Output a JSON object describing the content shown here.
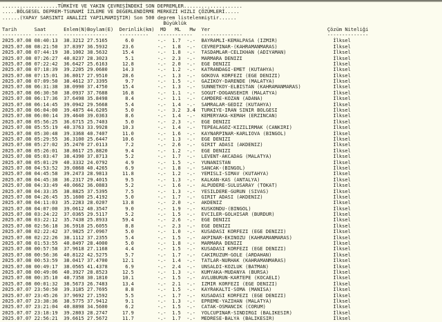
{
  "report": {
    "title_lines": [
      "...................TÜRKİYE VE YAKIN ÇEVRESİNDEKİ SON DEPREMLER....................",
      ".....BÖLGESEL DEPREM-TSUNAMİ İZLEME VE DEĞERLENDİRME MERKEZİ HIZLI ÇÖZÜMLERİ.....",
      "......(YAPAY SARSINTI ANALİZİ YAPILMAMIŞTIR) Son 500 deprem listelenmiştir......"
    ],
    "magnitude_group_label": "Büyüklük",
    "columns": [
      "Tarih",
      "Saat",
      "Enlem(N)",
      "Boylam(E)",
      "Derinlik(km)",
      "MD",
      "ML",
      "Mw",
      "Yer",
      "Çözüm Niteliği"
    ],
    "colors": {
      "background": "#fcfcee",
      "text": "#21211b",
      "topbar": "#8f8f82"
    },
    "earthquakes": [
      [
        "2025.07.08",
        "08:40:13",
        "38.3212",
        "27.5165",
        "6.0",
        "-.-",
        "1.7",
        "-.-",
        "BAYRAMLI-KEMALPASA (IZMIR)",
        "İlksel"
      ],
      [
        "2025.07.08",
        "08:21:50",
        "37.8397",
        "36.5932",
        "23.6",
        "-.-",
        "1.8",
        "-.-",
        "CEVREPINAR-(KAHRAMANMARAS)",
        "İlksel"
      ],
      [
        "2025.07.08",
        "07:44:19",
        "38.1002",
        "38.5632",
        "15.4",
        "-.-",
        "1.8",
        "-.-",
        "TASDAMLAR-CELIKHAN (ADIYAMAN)",
        "İlksel"
      ],
      [
        "2025.07.08",
        "07:26:27",
        "40.8237",
        "28.3023",
        "5.1",
        "-.-",
        "2.3",
        "-.-",
        "MARMARA DENIZI",
        "İlksel"
      ],
      [
        "2025.07.08",
        "07:22:42",
        "36.6427",
        "25.6163",
        "12.8",
        "-.-",
        "2.0",
        "-.-",
        "EGE DENIZI",
        "İlksel"
      ],
      [
        "2025.07.08",
        "07:18:39",
        "39.2205",
        "29.0680",
        "14.3",
        "-.-",
        "1.2",
        "-.-",
        "KATRANDAGI-EMET (KUTAHYA)",
        "İlksel"
      ],
      [
        "2025.07.08",
        "07:15:01",
        "36.8017",
        "27.9510",
        "28.6",
        "-.-",
        "1.3",
        "-.-",
        "GOKOVA KORFEZI (EGE DENIZI)",
        "İlksel"
      ],
      [
        "2025.07.08",
        "07:09:50",
        "38.4612",
        "37.3395",
        "9.7",
        "-.-",
        "1.5",
        "-.-",
        "GAZIKOY-DARENDE (MALATYA)",
        "İlksel"
      ],
      [
        "2025.07.08",
        "06:31:38",
        "38.0990",
        "37.4750",
        "15.4",
        "-.-",
        "1.3",
        "-.-",
        "SUNNETKOY-ELBISTAN (KAHRAMANMARAS)",
        "İlksel"
      ],
      [
        "2025.07.08",
        "06:30:50",
        "38.0937",
        "37.7688",
        "16.8",
        "-.-",
        "1.1",
        "-.-",
        "SOGUT-DOGANSEHIR (MALATYA)",
        "İlksel"
      ],
      [
        "2025.07.08",
        "06:17:36",
        "37.6498",
        "35.8498",
        "8.4",
        "-.-",
        "1.1",
        "-.-",
        "CAMDERE-KOZAN (ADANA)",
        "İlksel"
      ],
      [
        "2025.07.08",
        "06:14:45",
        "39.0942",
        "29.5668",
        "5.4",
        "-.-",
        "1.4",
        "-.-",
        "SAMRALAR-GEDIZ (KUTAHYA)",
        "İlksel"
      ],
      [
        "2025.07.08",
        "06:04:00",
        "39.4875",
        "44.6205",
        "5.0",
        "-.-",
        "3.2",
        "3.4",
        "TURKIYE-IRAN SINIR BOLGESI",
        "İlksel"
      ],
      [
        "2025.07.08",
        "06:00:14",
        "39.4640",
        "39.0363",
        "8.6",
        "-.-",
        "1.4",
        "-.-",
        "KEMERYAKA-KEMAH (ERZINCAN)",
        "İlksel"
      ],
      [
        "2025.07.08",
        "05:56:25",
        "36.6715",
        "25.7403",
        "5.0",
        "-.-",
        "2.3",
        "-.-",
        "EGE DENIZI",
        "İlksel"
      ],
      [
        "2025.07.08",
        "05:55:19",
        "40.3763",
        "33.9928",
        "10.3",
        "-.-",
        "1.4",
        "-.-",
        "TEPEALAGOZ-KIZILIRMAK (CANKIRI)",
        "İlksel"
      ],
      [
        "2025.07.08",
        "05:30:48",
        "39.3368",
        "40.7407",
        "11.0",
        "-.-",
        "1.6",
        "-.-",
        "KAYNARPINAR-KARLIOVA (BINGOL)",
        "İlksel"
      ],
      [
        "2025.07.08",
        "05:29:55",
        "36.3100",
        "25.6447",
        "10.6",
        "-.-",
        "1.3",
        "-.-",
        "EGE DENIZI",
        "İlksel"
      ],
      [
        "2025.07.08",
        "05:27:02",
        "35.2470",
        "27.0113",
        "7.2",
        "-.-",
        "2.6",
        "-.-",
        "GIRIT ADASI (AKDENIZ)",
        "İlksel"
      ],
      [
        "2025.07.08",
        "05:26:01",
        "38.8617",
        "25.8820",
        "9.4",
        "-.-",
        "1.2",
        "-.-",
        "EGE DENIZI",
        "İlksel"
      ],
      [
        "2025.07.08",
        "05:03:47",
        "38.4390",
        "37.8713",
        "5.2",
        "-.-",
        "1.7",
        "-.-",
        "LEVENT-AKCADAG (MALATYA)",
        "İlksel"
      ],
      [
        "2025.07.08",
        "05:01:29",
        "40.3332",
        "24.0792",
        "4.9",
        "-.-",
        "1.5",
        "-.-",
        "YUNANISTAN",
        "İlksel"
      ],
      [
        "2025.07.08",
        "04:53:52",
        "39.0868",
        "40.4265",
        "6.9",
        "-.-",
        "1.8",
        "-.-",
        "SANCAK-(BINGOL)",
        "İlksel"
      ],
      [
        "2025.07.08",
        "04:45:58",
        "39.2473",
        "28.9813",
        "11.8",
        "-.-",
        "1.2",
        "-.-",
        "YEMISLI-SIMAV (KUTAHYA)",
        "İlksel"
      ],
      [
        "2025.07.08",
        "04:45:38",
        "36.2317",
        "29.4015",
        "9.5",
        "-.-",
        "1.3",
        "-.-",
        "KALKAN-KAS (ANTALYA)",
        "İlksel"
      ],
      [
        "2025.07.08",
        "04:33:49",
        "40.0662",
        "36.0883",
        "5.2",
        "-.-",
        "1.6",
        "-.-",
        "ALPUDERE-SULUSARAY (TOKAT)",
        "İlksel"
      ],
      [
        "2025.07.08",
        "04:33:35",
        "38.8825",
        "37.5395",
        "7.5",
        "-.-",
        "1.3",
        "-.-",
        "YESILDERE-GURUN (SIVAS)",
        "İlksel"
      ],
      [
        "2025.07.08",
        "04:26:45",
        "35.1600",
        "25.4192",
        "5.0",
        "-.-",
        "1.7",
        "-.-",
        "GIRIT ADASI (AKDENIZ)",
        "İlksel"
      ],
      [
        "2025.07.08",
        "04:11:03",
        "35.2283",
        "28.0207",
        "13.8",
        "-.-",
        "2.0",
        "-.-",
        "AKDENIZ",
        "İlksel"
      ],
      [
        "2025.07.08",
        "04:07:00",
        "39.0612",
        "40.3547",
        "9.0",
        "-.-",
        "1.9",
        "-.-",
        "KUSKONDU-(BINGOL)",
        "İlksel"
      ],
      [
        "2025.07.08",
        "03:24:22",
        "37.0365",
        "29.5117",
        "5.2",
        "-.-",
        "1.5",
        "-.-",
        "EVCILER-GOLHISAR (BURDUR)",
        "İlksel"
      ],
      [
        "2025.07.08",
        "03:22:12",
        "35.7438",
        "25.8933",
        "59.4",
        "-.-",
        "2.6",
        "-.-",
        "EGE DENIZI",
        "İlksel"
      ],
      [
        "2025.07.08",
        "02:56:18",
        "36.5918",
        "25.6055",
        "8.8",
        "-.-",
        "2.3",
        "-.-",
        "EGE DENIZI",
        "İlksel"
      ],
      [
        "2025.07.08",
        "02:22:42",
        "37.9825",
        "27.0967",
        "5.0",
        "-.-",
        "1.0",
        "-.-",
        "KUSADASI KORFEZI (EGE DENIZI)",
        "İlksel"
      ],
      [
        "2025.07.08",
        "02:22:26",
        "38.1112",
        "37.2355",
        "5.4",
        "-.-",
        "1.5",
        "-.-",
        "AKPINAR-EKINOZU (KAHRAMANMARAS)",
        "İlksel"
      ],
      [
        "2025.07.08",
        "01:53:55",
        "40.8497",
        "28.4000",
        "5.0",
        "-.-",
        "1.8",
        "-.-",
        "MARMARA DENIZI",
        "İlksel"
      ],
      [
        "2025.07.08",
        "00:57:58",
        "37.9618",
        "27.1168",
        "4.4",
        "-.-",
        "1.5",
        "-.-",
        "KUSADASI KORFEZI (EGE DENIZI)",
        "İlksel"
      ],
      [
        "2025.07.08",
        "00:56:36",
        "40.8122",
        "42.5275",
        "5.7",
        "-.-",
        "1.7",
        "-.-",
        "CAKIRUZUM-GOLE (ARDAHAN)",
        "İlksel"
      ],
      [
        "2025.07.08",
        "00:53:59",
        "38.0417",
        "37.4700",
        "12.1",
        "-.-",
        "1.4",
        "-.-",
        "TATLAR-NURHAK (KAHRAMANMARAS)",
        "İlksel"
      ],
      [
        "2025.07.08",
        "00:49:17",
        "38.0565",
        "41.4378",
        "6.9",
        "-.-",
        "2.4",
        "-.-",
        "UNSALDI-KOZLUK (BATMAN)",
        "İlksel"
      ],
      [
        "2025.07.08",
        "00:49:06",
        "40.3927",
        "28.8523",
        "12.5",
        "-.-",
        "1.3",
        "-.-",
        "KUMYAKA-MUDANYA (BURSA)",
        "İlksel"
      ],
      [
        "2025.07.08",
        "00:35:10",
        "40.7358",
        "30.1810",
        "10.1",
        "-.-",
        "1.5",
        "-.-",
        "AVLUBURUN-KARTEPE (KOCAELI)",
        "İlksel"
      ],
      [
        "2025.07.08",
        "00:01:32",
        "38.5673",
        "26.7483",
        "13.4",
        "-.-",
        "2.1",
        "-.-",
        "IZMIR KORFEZI (EGE DENIZI)",
        "İlksel"
      ],
      [
        "2025.07.07",
        "23:50:50",
        "39.3185",
        "27.7695",
        "8.8",
        "-.-",
        "1.5",
        "-.-",
        "KAYRAKALTI-SOMA (MANISA)",
        "İlksel"
      ],
      [
        "2025.07.07",
        "23:45:26",
        "37.9692",
        "27.1592",
        "5.5",
        "-.-",
        "1.7",
        "-.-",
        "KUSADASI KORFEZI (EGE DENIZI)",
        "İlksel"
      ],
      [
        "2025.07.07",
        "23:38:36",
        "38.5775",
        "37.9412",
        "9.1",
        "-.-",
        "1.3",
        "-.-",
        "EPREME-YAZIHAN (MALATYA)",
        "İlksel"
      ],
      [
        "2025.07.07",
        "23:21:04",
        "40.8898",
        "34.5600",
        "6.2",
        "-.-",
        "1.5",
        "-.-",
        "CATAK-OSMANCIK (CORUM)",
        "İlksel"
      ],
      [
        "2025.07.07",
        "23:18:19",
        "39.2803",
        "28.2747",
        "17.9",
        "-.-",
        "1.5",
        "-.-",
        "YOLCUPINAR-SINDIRGI (BALIKESIR)",
        "İlksel"
      ],
      [
        "2025.07.07",
        "22:56:21",
        "39.6615",
        "27.5672",
        "11.7",
        "-.-",
        "1.7",
        "-.-",
        "MEDRESE-BALYA (BALIKESIR)",
        "İlksel"
      ]
    ]
  }
}
